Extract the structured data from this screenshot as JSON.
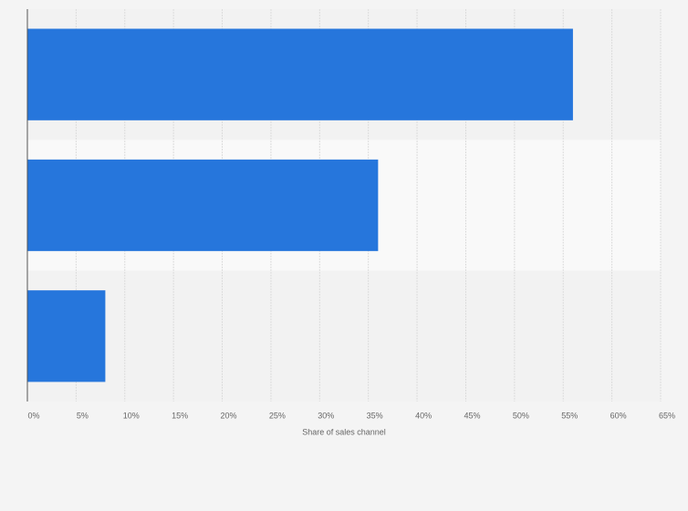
{
  "chart_data": {
    "type": "barh",
    "categories": [
      null,
      null,
      null
    ],
    "values": [
      56,
      36,
      8
    ],
    "color": "#2676dc",
    "xlabel": "Share of sales channel",
    "xlim": [
      0,
      65
    ],
    "xticks": [
      {
        "value": 0,
        "label": "0%"
      },
      {
        "value": 5,
        "label": "5%"
      },
      {
        "value": 10,
        "label": "10%"
      },
      {
        "value": 15,
        "label": "15%"
      },
      {
        "value": 20,
        "label": "20%"
      },
      {
        "value": 25,
        "label": "25%"
      },
      {
        "value": 30,
        "label": "30%"
      },
      {
        "value": 35,
        "label": "35%"
      },
      {
        "value": 40,
        "label": "40%"
      },
      {
        "value": 45,
        "label": "45%"
      },
      {
        "value": 50,
        "label": "50%"
      },
      {
        "value": 55,
        "label": "55%"
      },
      {
        "value": 60,
        "label": "60%"
      },
      {
        "value": 65,
        "label": "65%"
      }
    ],
    "grid": true
  }
}
